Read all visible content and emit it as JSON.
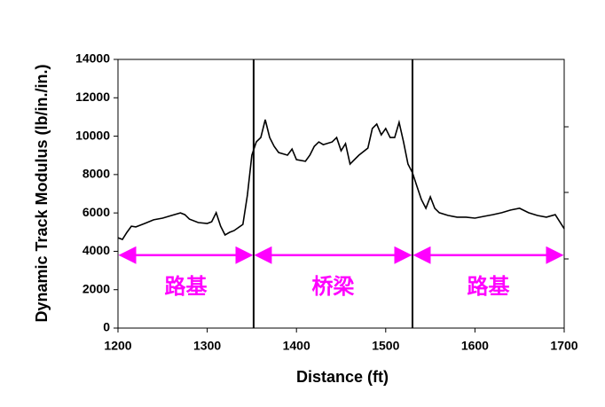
{
  "chart_data": {
    "type": "line",
    "y_label": "Dynamic Track Modulus (lb/in./in.)",
    "x_label": "Distance (ft)",
    "xlim": [
      1200,
      1700
    ],
    "xticks": [
      1200,
      1300,
      1400,
      1500,
      1600,
      1700
    ],
    "ylim": [
      0,
      14000
    ],
    "yticks": [
      0,
      2000,
      4000,
      6000,
      8000,
      10000,
      12000,
      14000
    ],
    "series": [
      {
        "color": "#000000",
        "x": [
          1200,
          1205,
          1210,
          1215,
          1220,
          1230,
          1240,
          1250,
          1260,
          1270,
          1275,
          1280,
          1290,
          1300,
          1305,
          1310,
          1315,
          1320,
          1325,
          1330,
          1340,
          1345,
          1350,
          1355,
          1360,
          1365,
          1370,
          1375,
          1380,
          1390,
          1395,
          1400,
          1410,
          1415,
          1420,
          1425,
          1430,
          1440,
          1445,
          1450,
          1455,
          1460,
          1470,
          1480,
          1485,
          1490,
          1495,
          1500,
          1505,
          1510,
          1515,
          1520,
          1525,
          1530,
          1535,
          1540,
          1545,
          1550,
          1555,
          1560,
          1570,
          1580,
          1590,
          1600,
          1610,
          1620,
          1630,
          1640,
          1650,
          1660,
          1670,
          1680,
          1690,
          1695,
          1700
        ],
        "values": [
          4710,
          4620,
          4990,
          5310,
          5270,
          5450,
          5640,
          5730,
          5870,
          6000,
          5910,
          5680,
          5500,
          5450,
          5540,
          6010,
          5310,
          4850,
          4990,
          5080,
          5400,
          6930,
          9010,
          9700,
          9930,
          10860,
          9930,
          9470,
          9150,
          9010,
          9330,
          8780,
          8690,
          9010,
          9470,
          9700,
          9560,
          9700,
          9930,
          9240,
          9610,
          8550,
          9010,
          9380,
          10400,
          10630,
          10070,
          10400,
          9930,
          9930,
          10720,
          9700,
          8550,
          8090,
          7390,
          6700,
          6240,
          6840,
          6240,
          6010,
          5870,
          5780,
          5780,
          5730,
          5820,
          5910,
          6010,
          6150,
          6240,
          6010,
          5870,
          5780,
          5910,
          5540,
          5180
        ]
      }
    ],
    "dividers": [
      1352,
      1530
    ],
    "annotation_color": "#ff00ff",
    "regions": [
      {
        "label": "路基",
        "x": [
          1200,
          1352
        ],
        "y": 3800
      },
      {
        "label": "桥梁",
        "x": [
          1352,
          1530
        ],
        "y": 3800
      },
      {
        "label": "路基",
        "x": [
          1530,
          1700
        ],
        "y": 3800
      }
    ]
  }
}
